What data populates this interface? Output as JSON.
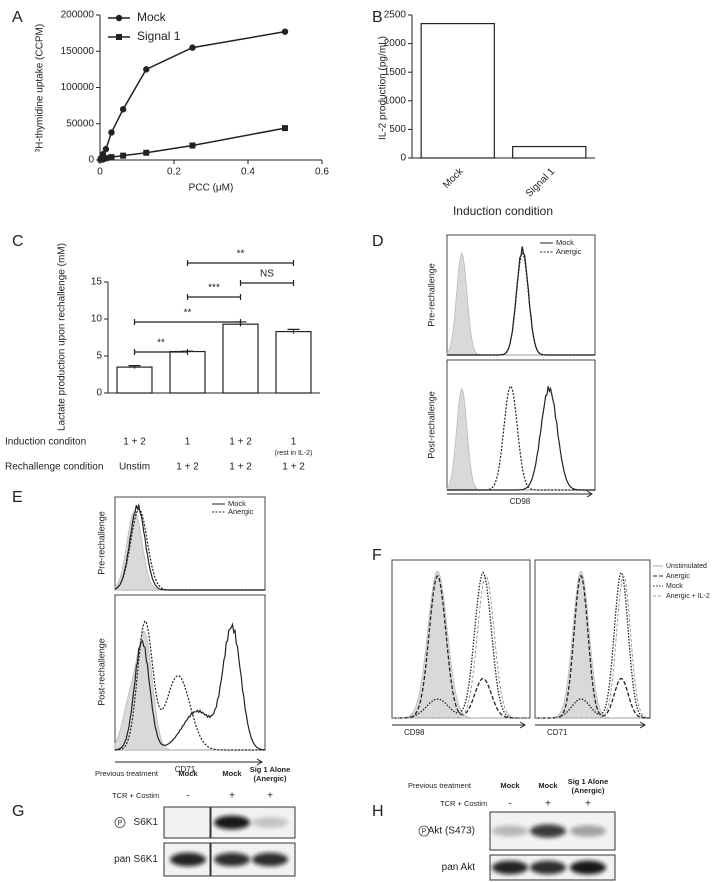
{
  "chart_data": [
    {
      "type": "line",
      "x_label": "PCC (μM)",
      "y_label": "³H-thymidine uptake (CCPM)",
      "x": [
        0.002,
        0.004,
        0.008,
        0.016,
        0.031,
        0.0625,
        0.125,
        0.25,
        0.5
      ],
      "series": [
        {
          "name": "Mock",
          "color": "#222222",
          "marker": "circle",
          "values": [
            1000,
            3000,
            8000,
            15000,
            38000,
            70000,
            125000,
            155000,
            177000
          ]
        },
        {
          "name": "Signal 1",
          "color": "#222222",
          "marker": "square",
          "values": [
            500,
            1000,
            1500,
            2500,
            4000,
            6000,
            10000,
            20000,
            44000
          ]
        }
      ],
      "xlim": [
        0,
        0.6
      ],
      "xticks": [
        0,
        0.2,
        0.4,
        0.6
      ],
      "ylim": [
        0,
        200000
      ],
      "yticks": [
        0,
        50000,
        100000,
        150000,
        200000
      ],
      "legend": "upper left"
    },
    {
      "type": "bar",
      "x_label": "Induction condition",
      "y_label": "IL-2 production  (pg/mL)",
      "categories": [
        "Mock",
        "Signal 1"
      ],
      "values": [
        2350,
        200
      ],
      "color": "#ffffff",
      "ylim": [
        0,
        2500
      ],
      "yticks": [
        0,
        500,
        1000,
        1500,
        2000,
        2500
      ]
    },
    {
      "type": "bar",
      "y_label": "Lactate production upon rechallenge  (mM)",
      "categories": [
        null,
        null,
        null,
        null
      ],
      "values": [
        3.5,
        5.6,
        9.3,
        8.3
      ],
      "errors": [
        0.2,
        0.05,
        0.3,
        0.3
      ],
      "color": "#ffffff",
      "ylim": [
        0,
        15
      ],
      "yticks": [
        0,
        5,
        10,
        15
      ],
      "annotations": [
        "**",
        "NS",
        "***",
        "**",
        "**"
      ],
      "table_rows": [
        {
          "label": "Induction conditon",
          "cells": [
            "1 + 2",
            "1",
            "1 + 2",
            "1"
          ],
          "note": "(rest in IL-2)"
        },
        {
          "label": "Rechallenge condition",
          "cells": [
            "Unstim",
            "1 + 2",
            "1 + 2",
            "1 + 2"
          ]
        }
      ]
    }
  ],
  "panels": {
    "labels": [
      "A",
      "B",
      "C",
      "D",
      "E",
      "F",
      "G",
      "H"
    ],
    "D": {
      "rows": [
        "Pre-rechallenge",
        "Post-rechallenge"
      ],
      "x_label": "CD98",
      "legend": [
        "Mock",
        "Anergic"
      ]
    },
    "E": {
      "rows": [
        "Pre-rechallenge",
        "Post-rechallenge"
      ],
      "x_label": "CD71",
      "legend": [
        "Mock",
        "Anergic"
      ]
    },
    "F": {
      "x_labels": [
        "CD98",
        "CD71"
      ],
      "legend": [
        "Unstimulated",
        "Anergic",
        "Mock",
        "Anergic + IL-2"
      ]
    },
    "G": {
      "previous": "Previous treatment",
      "lanes": [
        "Mock",
        "Mock",
        [
          "Sig 1 Alone",
          "(Anergic)"
        ]
      ],
      "stim": "TCR + Costim",
      "stim_marks": [
        "-",
        "+",
        "+"
      ],
      "phospho": "P",
      "blots": [
        "S6K1",
        "pan S6K1"
      ]
    },
    "H": {
      "previous": "Previous treatment",
      "lanes": [
        "Mock",
        "Mock",
        [
          "Sig 1 Alone",
          "(Anergic)"
        ]
      ],
      "stim": "TCR + Costim",
      "stim_marks": [
        "-",
        "+",
        "+"
      ],
      "phospho": "P",
      "blots": [
        "Akt (S473)",
        "pan Akt"
      ]
    }
  }
}
